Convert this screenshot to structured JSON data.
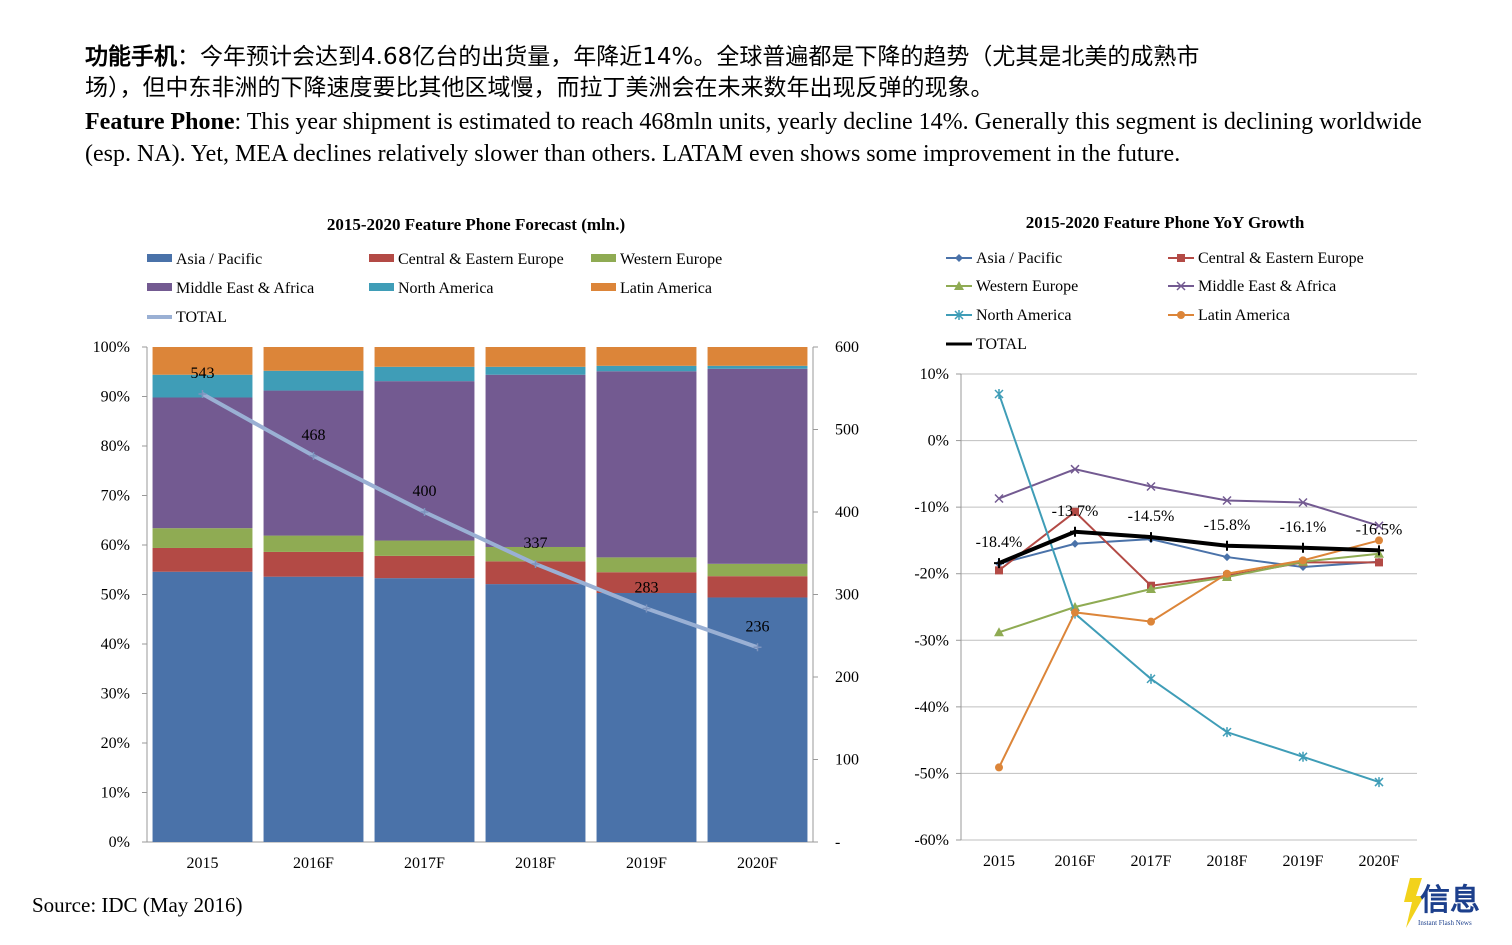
{
  "intro": {
    "cn_bold": "功能手机",
    "cn_line1_rest": "：今年预计会达到4.68亿台的出货量，年降近14%。全球普遍都是下降的趋势（尤其是北美的成熟市",
    "cn_line2": "场），但中东非洲的下降速度要比其他区域慢，而拉丁美洲会在未来数年出现反弹的现象。",
    "en_bold": "Feature Phone",
    "en_rest": ": This year shipment is estimated to reach 468mln units, yearly decline 14%. Generally this segment is declining worldwide (esp. NA). Yet, MEA declines relatively slower than others. LATAM even shows some improvement in the future."
  },
  "source": "Source: IDC (May 2016)",
  "logo": {
    "text": "信息",
    "subtext": "Instant Flash News",
    "icon": "lightning-bolt-icon"
  },
  "chart_data": [
    {
      "type": "bar",
      "stacked": "100%",
      "title": "2015-2020 Feature Phone Forecast (mln.)",
      "categories": [
        "2015",
        "2016F",
        "2017F",
        "2018F",
        "2019F",
        "2020F"
      ],
      "y_ticks": [
        "0%",
        "10%",
        "20%",
        "30%",
        "40%",
        "50%",
        "60%",
        "70%",
        "80%",
        "90%",
        "100%"
      ],
      "y2_ticks": [
        "-",
        "100",
        "200",
        "300",
        "400",
        "500",
        "600"
      ],
      "ylim": [
        0,
        100
      ],
      "y2lim": [
        0,
        600
      ],
      "legend_position": "top",
      "series": [
        {
          "name": "Asia / Pacific",
          "color": "#4a72a9",
          "values": [
            54.6,
            53.6,
            53.3,
            52.1,
            50.3,
            49.4
          ]
        },
        {
          "name": "Central & Eastern Europe",
          "color": "#b34a45",
          "values": [
            4.8,
            5.0,
            4.5,
            4.6,
            4.2,
            4.3
          ]
        },
        {
          "name": "Western Europe",
          "color": "#8fab53",
          "values": [
            4.0,
            3.3,
            3.1,
            2.9,
            3.0,
            2.5
          ]
        },
        {
          "name": "Middle East & Africa",
          "color": "#735a91",
          "values": [
            26.4,
            29.3,
            32.2,
            34.8,
            37.6,
            39.4
          ]
        },
        {
          "name": "North America",
          "color": "#3f9db7",
          "values": [
            4.6,
            4.0,
            2.9,
            1.6,
            1.1,
            0.6
          ]
        },
        {
          "name": "Latin America",
          "color": "#dc8539",
          "values": [
            5.6,
            4.8,
            4.0,
            4.0,
            3.8,
            3.8
          ]
        }
      ],
      "total": {
        "name": "TOTAL",
        "color": "#9ab0d4",
        "values": [
          543,
          468,
          400,
          337,
          283,
          236
        ],
        "labels": [
          "543",
          "468",
          "400",
          "337",
          "283",
          "236"
        ]
      }
    },
    {
      "type": "line",
      "title": "2015-2020 Feature Phone YoY Growth",
      "categories": [
        "2015",
        "2016F",
        "2017F",
        "2018F",
        "2019F",
        "2020F"
      ],
      "y_ticks": [
        "10%",
        "0%",
        "-10%",
        "-20%",
        "-30%",
        "-40%",
        "-50%",
        "-60%"
      ],
      "ylim": [
        -60,
        10
      ],
      "legend_position": "top",
      "series": [
        {
          "name": "Asia / Pacific",
          "color": "#4a72a9",
          "marker": "diamond",
          "values": [
            -18.5,
            -15.5,
            -14.8,
            -17.5,
            -19.0,
            -18.2
          ]
        },
        {
          "name": "Central & Eastern Europe",
          "color": "#b34a45",
          "marker": "square",
          "values": [
            -19.5,
            -10.7,
            -21.8,
            -20.3,
            -18.3,
            -18.3
          ]
        },
        {
          "name": "Western Europe",
          "color": "#8fab53",
          "marker": "triangle",
          "values": [
            -28.8,
            -25.0,
            -22.3,
            -20.5,
            -18.2,
            -17.0
          ]
        },
        {
          "name": "Middle East & Africa",
          "color": "#735a91",
          "marker": "x",
          "values": [
            -8.7,
            -4.3,
            -6.9,
            -9.0,
            -9.3,
            -12.8
          ]
        },
        {
          "name": "North America",
          "color": "#3f9db7",
          "marker": "star",
          "values": [
            7.0,
            -26.0,
            -35.8,
            -43.8,
            -47.5,
            -51.3
          ]
        },
        {
          "name": "Latin America",
          "color": "#dc8539",
          "marker": "circle",
          "values": [
            -49.1,
            -25.8,
            -27.2,
            -20.0,
            -18.0,
            -15.0
          ]
        }
      ],
      "total": {
        "name": "TOTAL",
        "color": "#000000",
        "values": [
          -18.4,
          -13.7,
          -14.5,
          -15.8,
          -16.1,
          -16.5
        ],
        "labels": [
          "-18.4%",
          "-13.7%",
          "-14.5%",
          "-15.8%",
          "-16.1%",
          "-16.5%"
        ]
      }
    }
  ]
}
